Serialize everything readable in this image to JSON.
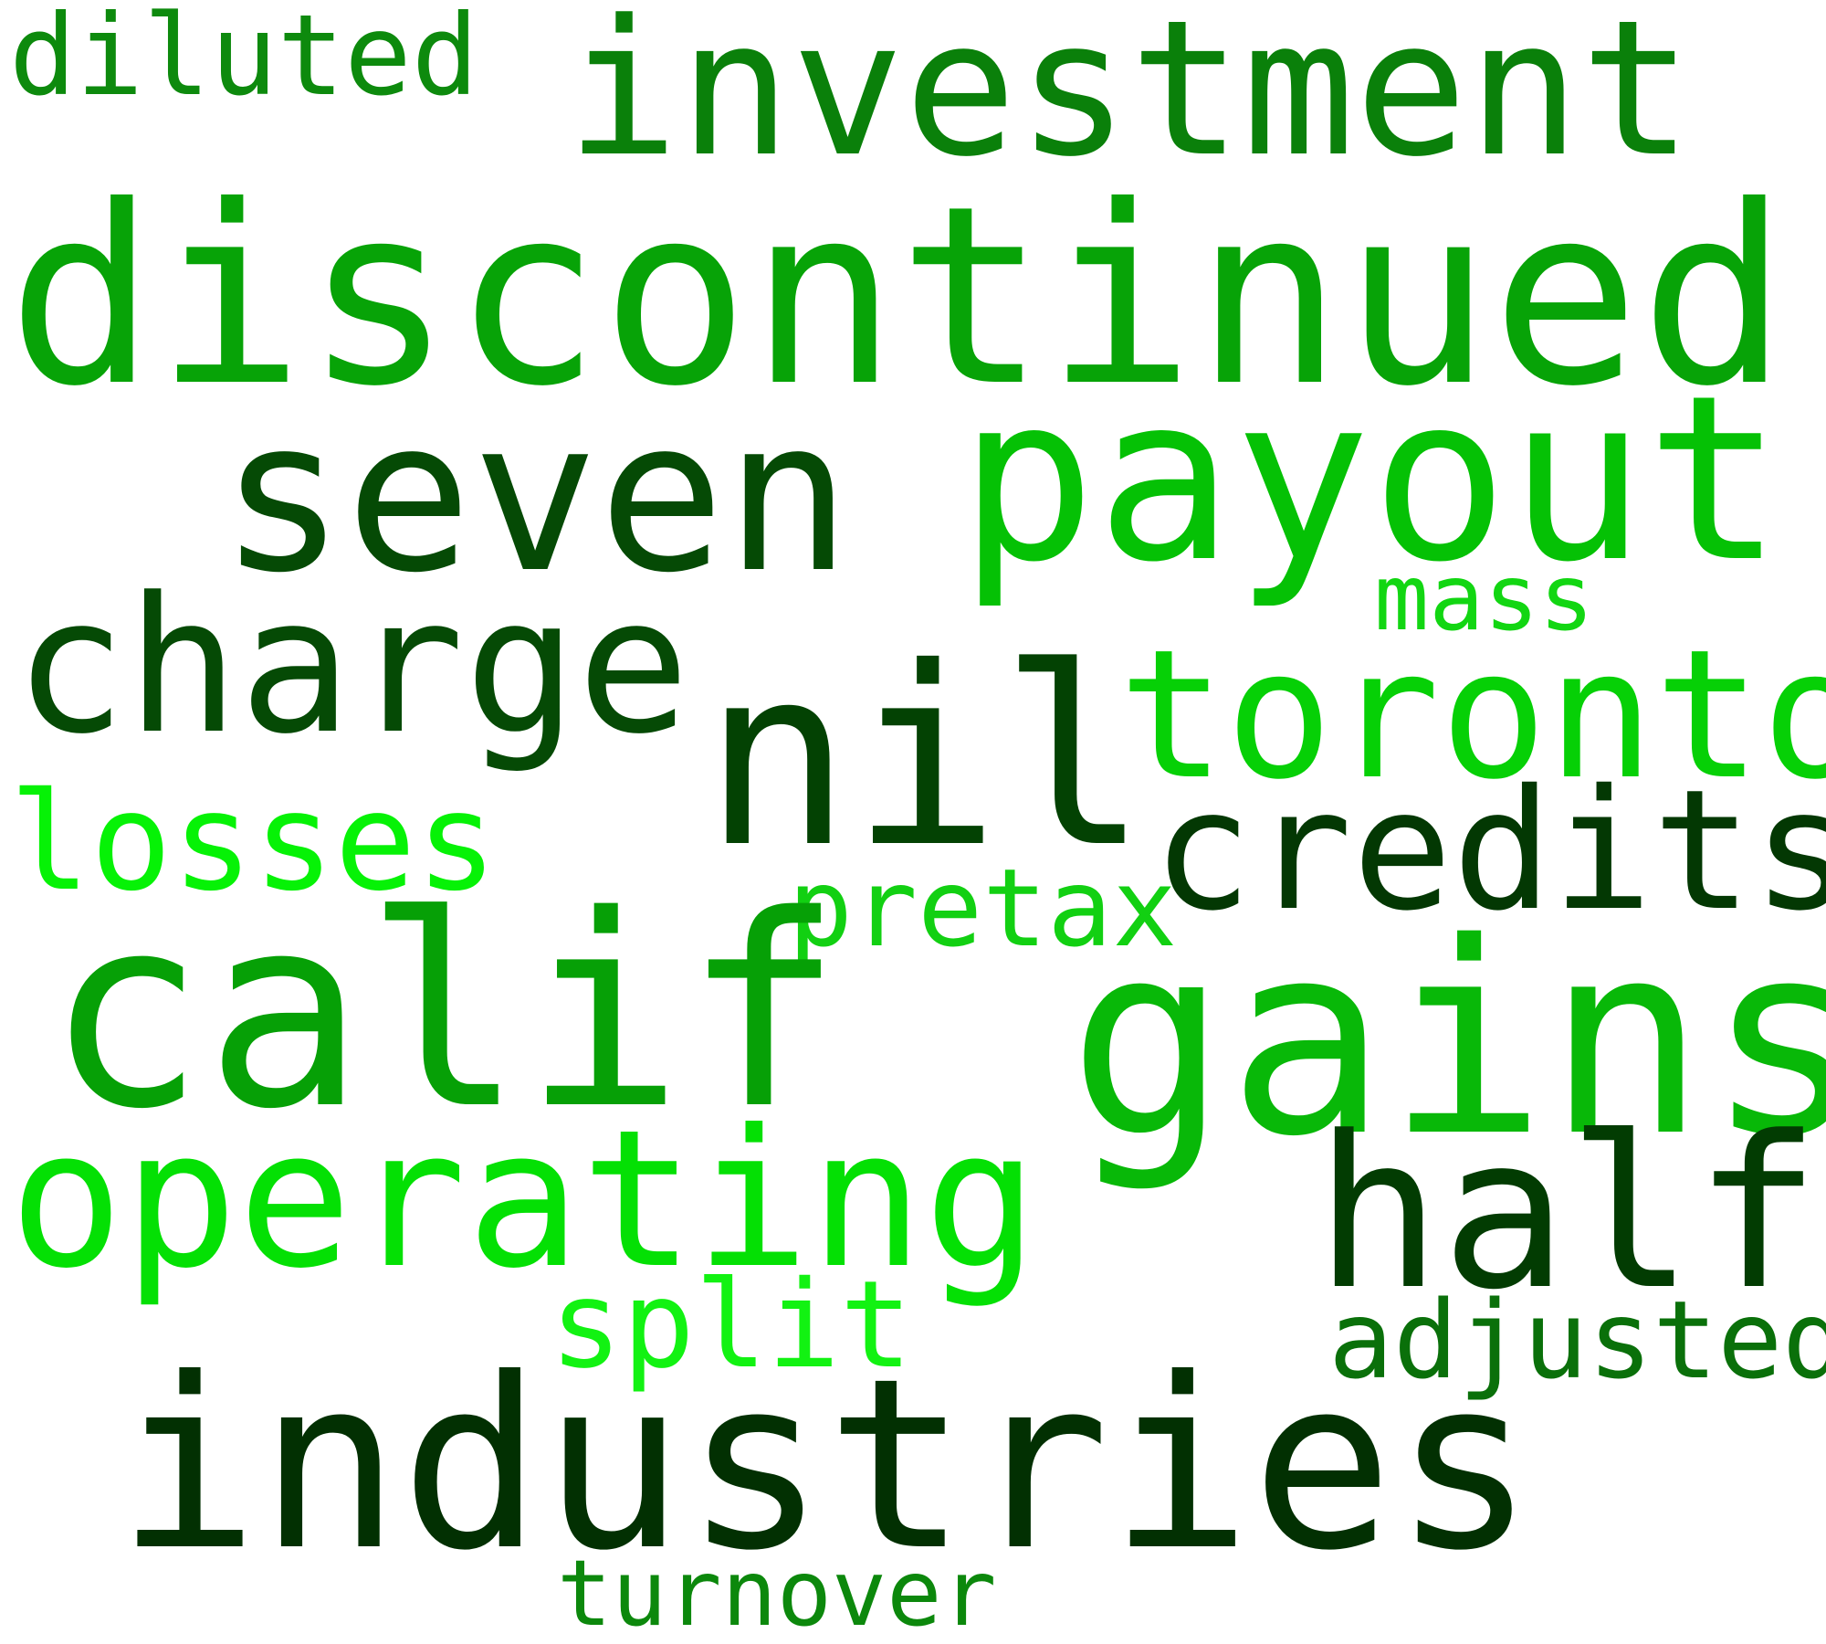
{
  "words": [
    {
      "text": "diluted",
      "color": "#0d8a0d"
    },
    {
      "text": "investment",
      "color": "#0a800a"
    },
    {
      "text": "discontinued",
      "color": "#07a307"
    },
    {
      "text": "seven",
      "color": "#054a05"
    },
    {
      "text": "payout",
      "color": "#05c105"
    },
    {
      "text": "mass",
      "color": "#12d612"
    },
    {
      "text": "charge",
      "color": "#054a05"
    },
    {
      "text": "nil",
      "color": "#034203"
    },
    {
      "text": "toronto",
      "color": "#06d006"
    },
    {
      "text": "losses",
      "color": "#06f206"
    },
    {
      "text": "credits",
      "color": "#033803"
    },
    {
      "text": "pretax",
      "color": "#12d012"
    },
    {
      "text": "calif",
      "color": "#06a006"
    },
    {
      "text": "gains",
      "color": "#08b808"
    },
    {
      "text": "operating",
      "color": "#04e004"
    },
    {
      "text": "half",
      "color": "#023c02"
    },
    {
      "text": "split",
      "color": "#12f212"
    },
    {
      "text": "adjusted",
      "color": "#0a700a"
    },
    {
      "text": "industries",
      "color": "#023002"
    },
    {
      "text": "turnover",
      "color": "#0c880c"
    }
  ]
}
